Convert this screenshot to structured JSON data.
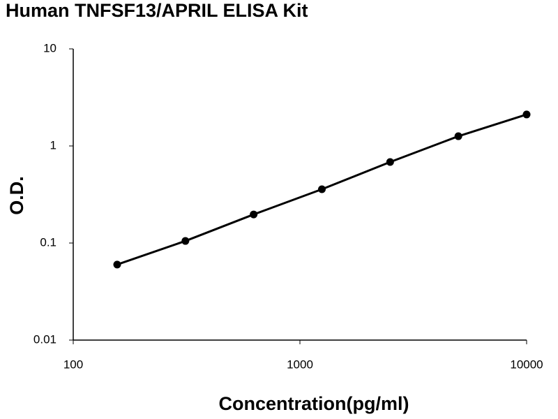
{
  "chart_data": {
    "type": "line",
    "title": "Human TNFSF13/APRIL ELISA Kit",
    "x_label": "Concentration(pg/ml)",
    "y_label": "O.D.",
    "x": [
      156.25,
      312.5,
      625,
      1250,
      2500,
      5000,
      10000
    ],
    "series": [
      {
        "color": "#000000",
        "values": [
          0.06,
          0.105,
          0.197,
          0.358,
          0.683,
          1.26,
          2.11
        ]
      }
    ],
    "xlim": [
      100,
      10000
    ],
    "xticks": [
      100,
      1000,
      10000
    ],
    "ylim": [
      0.01,
      10
    ],
    "yticks": [
      0.01,
      0.1,
      1,
      10
    ],
    "xscale": "log",
    "yscale": "log",
    "grid": false,
    "markers": true
  }
}
